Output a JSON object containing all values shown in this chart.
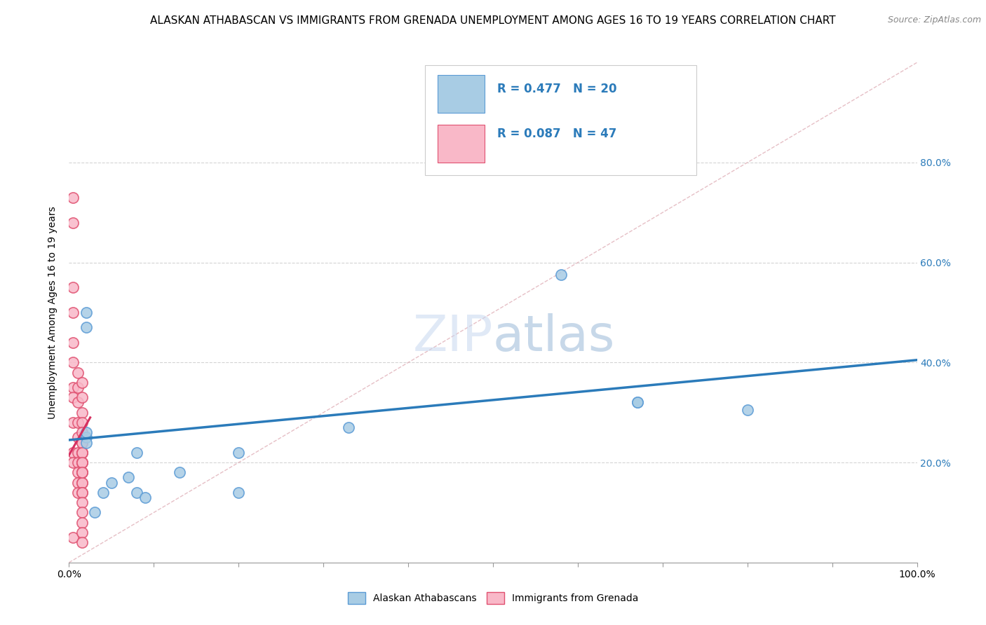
{
  "title": "ALASKAN ATHABASCAN VS IMMIGRANTS FROM GRENADA UNEMPLOYMENT AMONG AGES 16 TO 19 YEARS CORRELATION CHART",
  "source": "Source: ZipAtlas.com",
  "ylabel": "Unemployment Among Ages 16 to 19 years",
  "xlim": [
    0,
    1.0
  ],
  "ylim": [
    0,
    1.0
  ],
  "right_yticklabels": [
    "20.0%",
    "40.0%",
    "60.0%",
    "80.0%"
  ],
  "right_yticks": [
    0.2,
    0.4,
    0.6,
    0.8
  ],
  "blue_scatter_x": [
    0.02,
    0.02,
    0.03,
    0.04,
    0.05,
    0.07,
    0.08,
    0.08,
    0.09,
    0.13,
    0.2,
    0.2,
    0.33,
    0.58,
    0.67,
    0.67,
    0.8,
    0.02,
    0.02,
    0.02
  ],
  "blue_scatter_y": [
    0.25,
    0.47,
    0.1,
    0.14,
    0.16,
    0.17,
    0.14,
    0.22,
    0.13,
    0.18,
    0.22,
    0.14,
    0.27,
    0.575,
    0.32,
    0.32,
    0.305,
    0.5,
    0.24,
    0.26
  ],
  "pink_scatter_x": [
    0.005,
    0.005,
    0.005,
    0.005,
    0.005,
    0.005,
    0.005,
    0.005,
    0.005,
    0.005,
    0.005,
    0.005,
    0.01,
    0.01,
    0.01,
    0.01,
    0.01,
    0.01,
    0.01,
    0.01,
    0.01,
    0.01,
    0.015,
    0.015,
    0.015,
    0.015,
    0.015,
    0.015,
    0.015,
    0.015,
    0.015,
    0.015,
    0.015,
    0.015,
    0.015,
    0.015,
    0.015,
    0.015,
    0.015,
    0.015,
    0.015,
    0.015,
    0.015,
    0.015,
    0.015,
    0.015,
    0.015
  ],
  "pink_scatter_y": [
    0.73,
    0.68,
    0.55,
    0.5,
    0.44,
    0.4,
    0.35,
    0.33,
    0.28,
    0.22,
    0.2,
    0.05,
    0.38,
    0.35,
    0.32,
    0.28,
    0.25,
    0.22,
    0.2,
    0.18,
    0.16,
    0.14,
    0.36,
    0.33,
    0.3,
    0.28,
    0.26,
    0.24,
    0.22,
    0.22,
    0.2,
    0.2,
    0.18,
    0.18,
    0.16,
    0.16,
    0.14,
    0.14,
    0.12,
    0.1,
    0.08,
    0.06,
    0.24,
    0.22,
    0.2,
    0.18,
    0.04
  ],
  "blue_line_x": [
    0.0,
    1.0
  ],
  "blue_line_y": [
    0.245,
    0.405
  ],
  "pink_line_x": [
    0.0,
    0.025
  ],
  "pink_line_y": [
    0.215,
    0.29
  ],
  "diag_line_x": [
    0.0,
    1.0
  ],
  "diag_line_y": [
    0.0,
    1.0
  ],
  "blue_color": "#a8cce4",
  "blue_edge_color": "#5b9bd5",
  "blue_line_color": "#2b7bba",
  "pink_color": "#f9b8c8",
  "pink_edge_color": "#e05070",
  "pink_line_color": "#d63060",
  "diag_color": "#c8c8c8",
  "legend_r_blue": "R = 0.477",
  "legend_n_blue": "N = 20",
  "legend_r_pink": "R = 0.087",
  "legend_n_pink": "N = 47",
  "legend_text_color": "#2b7bba",
  "watermark_zip": "ZIP",
  "watermark_atlas": "atlas",
  "background_color": "#ffffff",
  "grid_color": "#d0d0d0",
  "title_fontsize": 11,
  "axis_fontsize": 10,
  "scatter_size": 120
}
